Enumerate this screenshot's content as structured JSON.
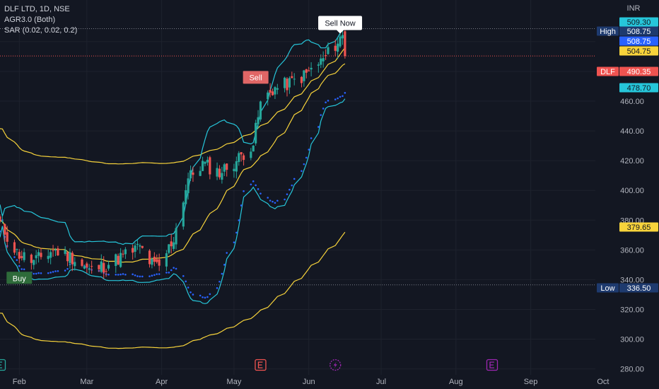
{
  "legend": {
    "symbol_line": "DLF LTD, 1D, NSE",
    "indicator1": "AGR3.0 (Both)",
    "indicator2": "SAR (0.02, 0.02, 0.2)"
  },
  "currency": "INR",
  "colors": {
    "background": "#131722",
    "up": "#26a69a",
    "down": "#ef5350",
    "band": "#26c6da",
    "avg": "#f7d33b",
    "sar": "#2962ff",
    "grid": "#1e222d"
  },
  "chart_data": {
    "type": "candlestick",
    "title": "DLF LTD, 1D, NSE",
    "x_ticks": [
      "Feb",
      "Mar",
      "Apr",
      "May",
      "Jun",
      "Jul",
      "Aug",
      "Sep",
      "Oct"
    ],
    "y_ticks": [
      280,
      300,
      320,
      340,
      360,
      380,
      400,
      420,
      440,
      460,
      480,
      500
    ],
    "ylim": [
      276,
      528
    ],
    "x_range": [
      "2023-01-24",
      "2023-10-06"
    ],
    "price_tags": [
      {
        "text": "509.30",
        "value": 509.3,
        "bg": "#26c6da",
        "fg": "#131722"
      },
      {
        "label": "High",
        "text": "508.75",
        "value": 508.75,
        "bg": "#1e3a6e",
        "fg": "#ffffff"
      },
      {
        "text": "508.75",
        "value": 508.75,
        "bg": "#2962ff",
        "fg": "#ffffff"
      },
      {
        "text": "504.75",
        "value": 504.75,
        "bg": "#f7d33b",
        "fg": "#131722"
      },
      {
        "label": "DLF",
        "text": "490.35",
        "value": 490.35,
        "bg": "#ef5350",
        "fg": "#ffffff"
      },
      {
        "text": "478.70",
        "value": 478.7,
        "bg": "#26c6da",
        "fg": "#131722"
      },
      {
        "text": "379.65",
        "value": 379.65,
        "bg": "#f7d33b",
        "fg": "#131722"
      },
      {
        "label": "Low",
        "text": "336.50",
        "value": 336.5,
        "bg": "#1e3a6e",
        "fg": "#ffffff"
      }
    ],
    "last_price": 490.35,
    "high": 508.75,
    "low": 336.5,
    "signals": [
      {
        "text": "Buy",
        "date": "2023-02-01",
        "price": 341,
        "type": "buy"
      },
      {
        "text": "Sell",
        "date": "2023-05-10",
        "price": 476,
        "type": "sell"
      },
      {
        "text": "Sell Now",
        "date": "2023-06-14",
        "price": 513,
        "type": "sell-now"
      }
    ],
    "events": [
      {
        "date": "2023-01-24",
        "type": "earnings",
        "color": "#26a69a"
      },
      {
        "date": "2023-05-12",
        "type": "earnings",
        "color": "#ef5350"
      },
      {
        "date": "2023-06-12",
        "type": "dividend",
        "color": "#9c27b0"
      },
      {
        "date": "2023-08-16",
        "type": "earnings",
        "color": "#9c27b0"
      }
    ],
    "series": [
      {
        "type": "ohlc",
        "anchors": [
          [
            "2023-01-24",
            378
          ],
          [
            "2023-01-31",
            358
          ],
          [
            "2023-02-07",
            352
          ],
          [
            "2023-02-15",
            360
          ],
          [
            "2023-02-23",
            355
          ],
          [
            "2023-03-02",
            346
          ],
          [
            "2023-03-09",
            350
          ],
          [
            "2023-03-16",
            356
          ],
          [
            "2023-03-23",
            362
          ],
          [
            "2023-03-28",
            350
          ],
          [
            "2023-03-31",
            348
          ],
          [
            "2023-04-06",
            368
          ],
          [
            "2023-04-12",
            408
          ],
          [
            "2023-04-18",
            418
          ],
          [
            "2023-04-25",
            412
          ],
          [
            "2023-05-02",
            420
          ],
          [
            "2023-05-09",
            432
          ],
          [
            "2023-05-12",
            458
          ],
          [
            "2023-05-17",
            468
          ],
          [
            "2023-05-24",
            472
          ],
          [
            "2023-05-31",
            478
          ],
          [
            "2023-06-07",
            488
          ],
          [
            "2023-06-13",
            500
          ],
          [
            "2023-06-15",
            504
          ],
          [
            "2023-06-16",
            490.35
          ]
        ]
      },
      {
        "type": "sar"
      },
      {
        "type": "band"
      },
      {
        "type": "avg"
      }
    ]
  }
}
